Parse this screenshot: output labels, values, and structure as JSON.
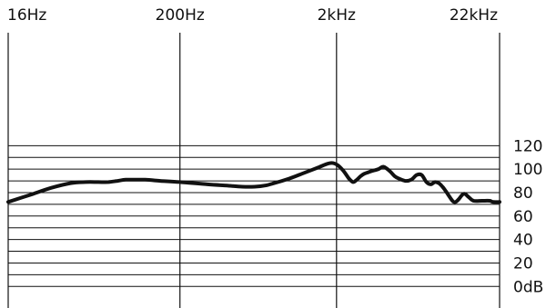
{
  "chart_data": {
    "type": "line",
    "title": "",
    "xlabel": "",
    "ylabel": "",
    "x_scale": "log",
    "xlim": [
      16,
      22000
    ],
    "ylim": [
      0,
      120
    ],
    "grid": true,
    "x_ticks": [
      {
        "value": 16,
        "label": "16Hz"
      },
      {
        "value": 200,
        "label": "200Hz"
      },
      {
        "value": 2000,
        "label": "2kHz"
      },
      {
        "value": 22000,
        "label": "22kHz"
      }
    ],
    "y_ticks": [
      {
        "value": 120,
        "label": "120"
      },
      {
        "value": 100,
        "label": "100"
      },
      {
        "value": 80,
        "label": "80"
      },
      {
        "value": 60,
        "label": "60"
      },
      {
        "value": 40,
        "label": "40"
      },
      {
        "value": 20,
        "label": "20"
      },
      {
        "value": 0,
        "label": "0dB"
      }
    ],
    "series": [
      {
        "color": "#111111",
        "x": [
          16,
          22,
          30,
          40,
          50,
          60,
          70,
          80,
          90,
          100,
          120,
          150,
          200,
          300,
          400,
          500,
          600,
          700,
          800,
          1000,
          1200,
          1500,
          1800,
          2000,
          2200,
          2400,
          2550,
          2700,
          2850,
          3000,
          3300,
          3700,
          4000,
          4400,
          4700,
          5000,
          5500,
          6000,
          6500,
          7000,
          7500,
          8000,
          8500,
          9000,
          9500,
          10000,
          11000,
          11500,
          12000,
          13000,
          14000,
          15000,
          17000,
          19000,
          20000,
          22000
        ],
        "y": [
          72,
          78,
          84,
          88,
          89,
          89,
          89,
          90,
          91,
          91,
          91,
          90,
          89,
          87,
          86,
          85,
          85,
          86,
          88,
          92,
          96,
          101,
          105,
          104,
          99,
          92,
          89,
          91,
          94,
          96,
          98,
          100,
          102,
          98,
          94,
          92,
          90,
          91,
          95,
          95,
          89,
          87,
          89,
          88,
          85,
          81,
          73,
          72,
          74,
          79,
          76,
          73,
          73,
          73,
          72,
          72
        ]
      }
    ]
  }
}
